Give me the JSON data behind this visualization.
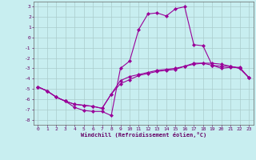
{
  "xlabel": "Windchill (Refroidissement éolien,°C)",
  "background_color": "#c8eef0",
  "grid_color": "#aacccc",
  "line_color": "#990099",
  "xlim": [
    -0.5,
    23.5
  ],
  "ylim": [
    -8.5,
    3.5
  ],
  "xticks": [
    0,
    1,
    2,
    3,
    4,
    5,
    6,
    7,
    8,
    9,
    10,
    11,
    12,
    13,
    14,
    15,
    16,
    17,
    18,
    19,
    20,
    21,
    22,
    23
  ],
  "yticks": [
    -8,
    -7,
    -6,
    -5,
    -4,
    -3,
    -2,
    -1,
    0,
    1,
    2,
    3
  ],
  "line1_x": [
    0,
    1,
    2,
    3,
    4,
    5,
    6,
    7,
    8,
    9,
    10,
    11,
    12,
    13,
    14,
    15,
    16,
    17,
    18,
    19,
    20,
    21,
    22,
    23
  ],
  "line1_y": [
    -4.8,
    -5.2,
    -5.8,
    -6.2,
    -6.8,
    -7.1,
    -7.2,
    -7.2,
    -7.6,
    -3.0,
    -2.3,
    0.8,
    2.3,
    2.4,
    2.1,
    2.8,
    3.0,
    -0.7,
    -0.8,
    -2.7,
    -3.0,
    -2.9,
    -2.9,
    -3.9
  ],
  "line2_x": [
    0,
    1,
    2,
    3,
    4,
    5,
    6,
    7,
    8,
    9,
    10,
    11,
    12,
    13,
    14,
    15,
    16,
    17,
    18,
    19,
    20,
    21,
    22,
    23
  ],
  "line2_y": [
    -4.8,
    -5.2,
    -5.8,
    -6.2,
    -6.5,
    -6.6,
    -6.7,
    -6.9,
    -5.5,
    -4.5,
    -4.1,
    -3.7,
    -3.5,
    -3.3,
    -3.2,
    -3.1,
    -2.8,
    -2.5,
    -2.5,
    -2.7,
    -2.8,
    -2.8,
    -3.0,
    -3.9
  ],
  "line3_x": [
    0,
    1,
    2,
    3,
    4,
    5,
    6,
    7,
    8,
    9,
    10,
    11,
    12,
    13,
    14,
    15,
    16,
    17,
    18,
    19,
    20,
    21,
    22,
    23
  ],
  "line3_y": [
    -4.8,
    -5.2,
    -5.8,
    -6.2,
    -6.5,
    -6.6,
    -6.7,
    -6.9,
    -5.5,
    -4.2,
    -3.8,
    -3.6,
    -3.4,
    -3.2,
    -3.1,
    -3.0,
    -2.8,
    -2.6,
    -2.5,
    -2.5,
    -2.6,
    -2.8,
    -3.0,
    -3.9
  ]
}
